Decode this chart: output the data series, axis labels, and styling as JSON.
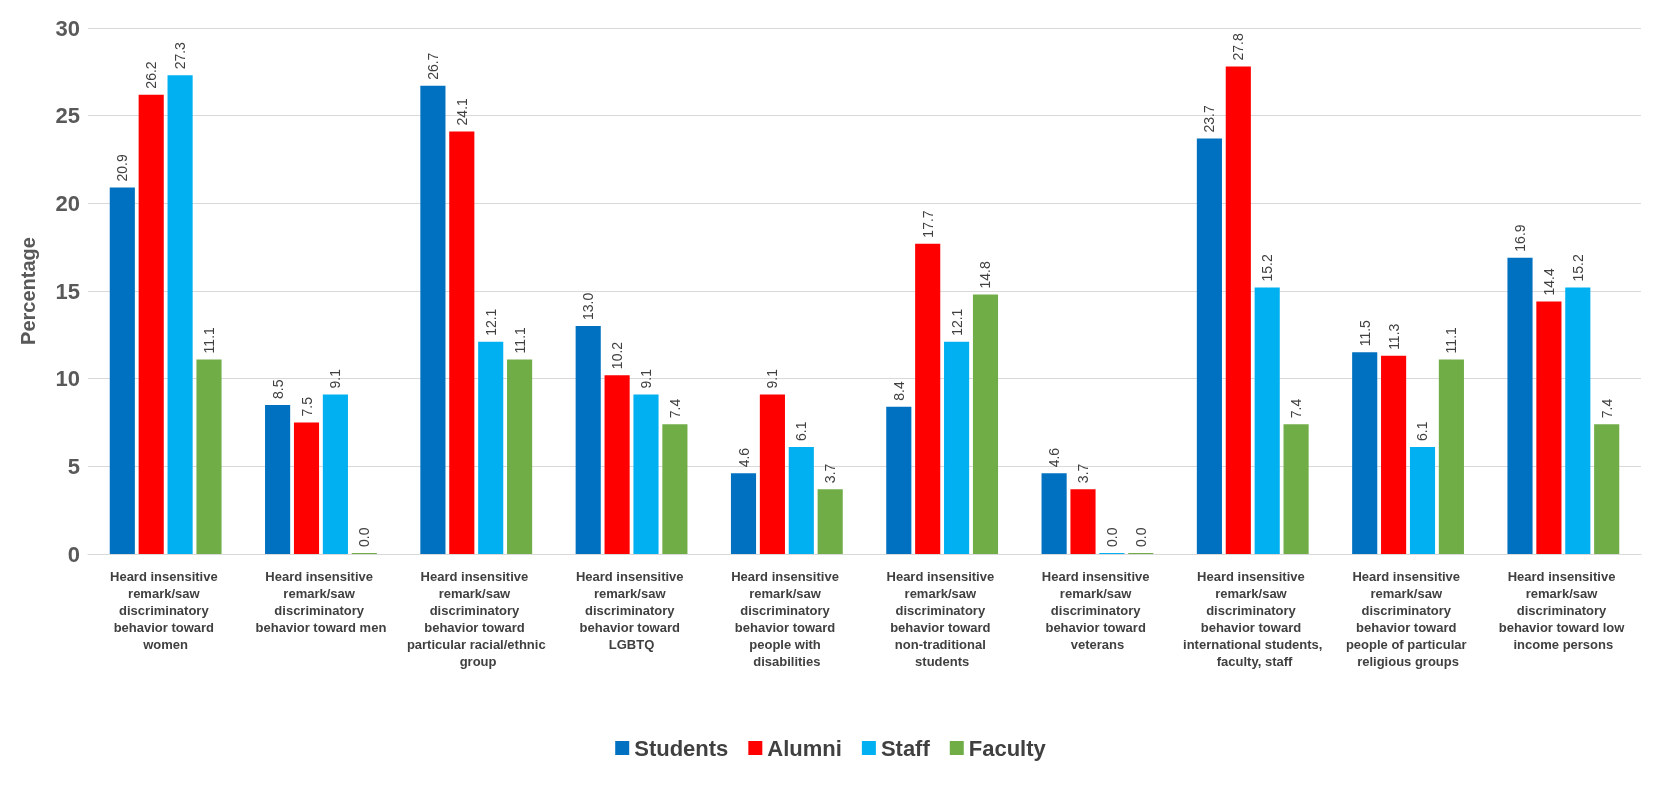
{
  "chart_data": {
    "type": "bar",
    "ylabel": "Percentage",
    "categories": [
      "Heard insensitive remark/saw discriminatory behavior toward women",
      "Heard insensitive remark/saw discriminatory behavior toward men",
      "Heard insensitive remark/saw discriminatory behavior toward particular racial/ethnic group",
      "Heard insensitive remark/saw discriminatory behavior toward LGBTQ",
      "Heard insensitive remark/saw discriminatory behavior toward people with disabilities",
      "Heard insensitive remark/saw discriminatory behavior toward non-traditional students",
      "Heard insensitive remark/saw discriminatory behavior toward veterans",
      "Heard insensitive remark/saw discriminatory behavior toward international students, faculty, staff",
      "Heard insensitive remark/saw discriminatory behavior toward people of particular religious groups",
      "Heard insensitive remark/saw discriminatory behavior toward low income persons"
    ],
    "series": [
      {
        "name": "Students",
        "color": "#0070c0",
        "values": [
          20.9,
          8.5,
          26.7,
          13.0,
          4.6,
          8.4,
          4.6,
          23.7,
          11.5,
          16.9
        ],
        "value_labels": [
          "20.9",
          "8.5",
          "26.7",
          "13.0",
          "4.6",
          "8.4",
          "4.6",
          "23.7",
          "11.5",
          "16.9"
        ]
      },
      {
        "name": "Alumni",
        "color": "#ff0000",
        "values": [
          26.2,
          7.5,
          24.1,
          10.2,
          9.1,
          17.7,
          3.7,
          27.8,
          11.3,
          14.4
        ],
        "value_labels": [
          "26.2",
          "7.5",
          "24.1",
          "10.2",
          "9.1",
          "17.7",
          "3.7",
          "27.8",
          "11.3",
          "14.4"
        ]
      },
      {
        "name": "Staff",
        "color": "#00b0f0",
        "values": [
          27.3,
          9.1,
          12.1,
          9.1,
          6.1,
          12.1,
          0.0,
          15.2,
          6.1,
          15.2
        ],
        "value_labels": [
          "27.3",
          "9.1",
          "12.1",
          "9.1",
          "6.1",
          "12.1",
          "0.0",
          "15.2",
          "6.1",
          "15.2"
        ]
      },
      {
        "name": "Faculty",
        "color": "#70ad47",
        "values": [
          11.1,
          0.0,
          11.1,
          7.4,
          3.7,
          14.8,
          0.0,
          7.4,
          11.1,
          7.4
        ],
        "value_labels": [
          "11.1",
          "0.0",
          "11.1",
          "7.4",
          "3.7",
          "14.8",
          "0.0",
          "7.4",
          "11.1",
          "7.4"
        ]
      }
    ],
    "ylim": [
      0,
      30
    ],
    "yticks": [
      0,
      5,
      10,
      15,
      20,
      25,
      30
    ],
    "grid": "y",
    "legend": "bottom"
  }
}
